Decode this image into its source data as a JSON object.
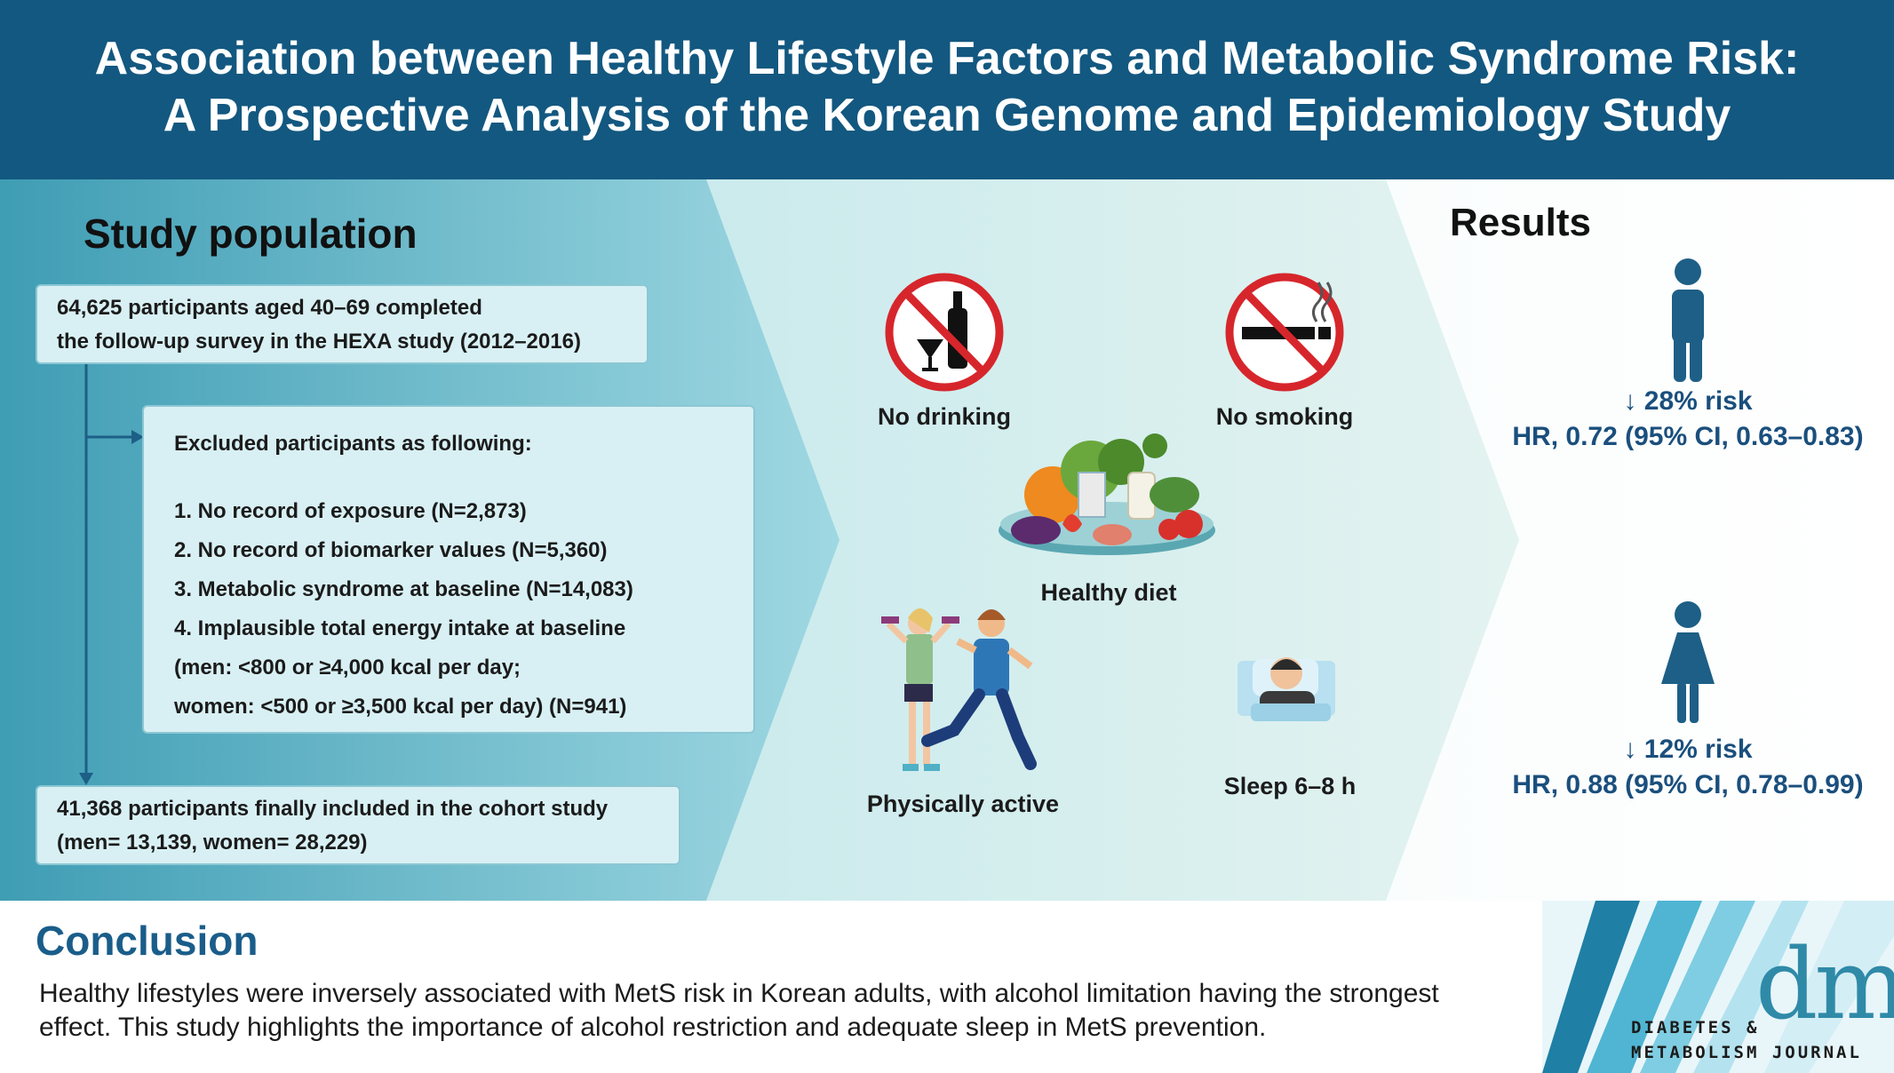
{
  "header": {
    "title_line1": "Association between Healthy Lifestyle Factors and Metabolic Syndrome Risk:",
    "title_line2": "A Prospective Analysis of the Korean Genome and Epidemiology Study"
  },
  "study_population": {
    "title": "Study population",
    "box1": [
      "64,625 participants aged 40–69 completed",
      "the follow-up survey in the HEXA study (2012–2016)"
    ],
    "excluded_title": "Excluded participants as following:",
    "excluded": [
      "1. No record of exposure (N=2,873)",
      "2. No record of biomarker values (N=5,360)",
      "3. Metabolic syndrome at baseline (N=14,083)",
      "4. Implausible total energy intake at baseline",
      "(men: <800 or ≥4,000 kcal per day;",
      "women: <500 or ≥3,500 kcal per day) (N=941)"
    ],
    "box3": [
      "41,368 participants finally included in the cohort study",
      "(men= 13,139, women= 28,229)"
    ]
  },
  "factors": {
    "no_drinking": "No drinking",
    "no_smoking": "No smoking",
    "healthy_diet": "Healthy diet",
    "physically_active": "Physically active",
    "sleep": "Sleep 6–8 h"
  },
  "results": {
    "title": "Results",
    "men": {
      "risk": "↓ 28% risk",
      "hr": "HR, 0.72 (95% CI, 0.63–0.83)"
    },
    "women": {
      "risk": "↓ 12% risk",
      "hr": "HR, 0.88 (95% CI, 0.78–0.99)"
    }
  },
  "conclusion": {
    "title": "Conclusion",
    "text_line1": "Healthy lifestyles were inversely associated with MetS risk in Korean adults, with alcohol limitation having the strongest",
    "text_line2": "effect. This study highlights the importance of alcohol restriction and adequate sleep in MetS prevention."
  },
  "logo": {
    "mark": "dmj",
    "line1": "DIABETES &",
    "line2": "METABOLISM JOURNAL"
  },
  "colors": {
    "header": "#135880",
    "result_text": "#1a4f7d",
    "accent": "#2f8aa8"
  }
}
